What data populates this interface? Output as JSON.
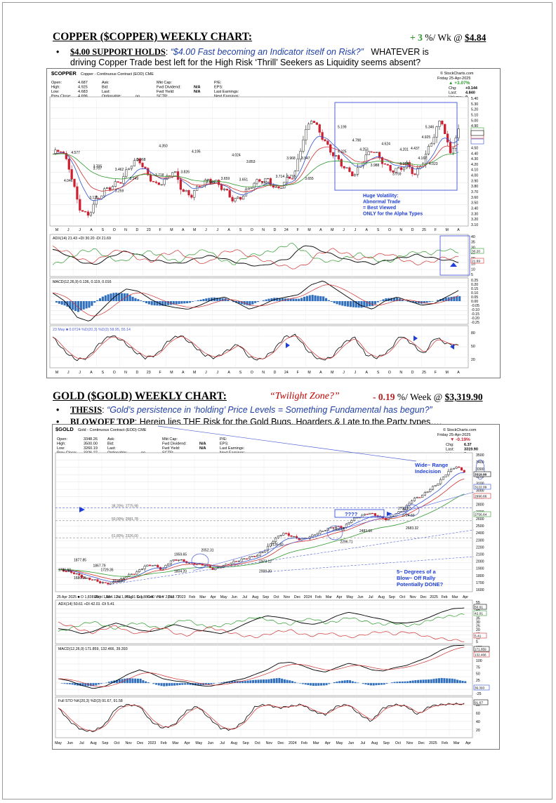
{
  "copper": {
    "title": "COPPER ($COPPER) WEEKLY CHART",
    "change_value": "+ 3",
    "change_unit": "%/ Wk @ ",
    "price": "$4.84",
    "bullet_label": "$4.00 SUPPORT HOLDS",
    "bullet_quote": "“$4.00 Fast becoming an Indicator itself on Risk?”",
    "bullet_rest": "WHATEVER is",
    "bullet_line2": "driving Copper Trade best left for the High Risk ‘Thrill’ Seekers as Liquidity seems absent?",
    "chart": {
      "symbol": "$COPPER",
      "desc": "Copper - Continuous Contract (EOD) CME",
      "source": "© StockCharts.com",
      "date": "Friday 25-Apr-2025",
      "pct": "▲ +3.07%",
      "stats_left": [
        "Open:",
        "High:",
        "Low:",
        "Prev Close:"
      ],
      "stats_left_vals": [
        "4.687",
        "4.925",
        "4.683",
        "4.696"
      ],
      "stats_mid": [
        "Ask:",
        "Bid:",
        "Last:",
        "Optionable:"
      ],
      "stats_mid_vals": [
        "",
        "",
        "",
        "no"
      ],
      "stats_r1": [
        "Mkt Cap:",
        "Fwd Dividend:",
        "Fwd Yield:",
        "SCTR:"
      ],
      "stats_r1_vals": [
        "",
        "N/A",
        "N/A",
        ""
      ],
      "stats_r2": [
        "P/E:",
        "EPS:",
        "Last Earnings:",
        "Next Earnings:"
      ],
      "stats_right": [
        "Chg:",
        "Last:",
        "Volume:"
      ],
      "stats_right_vals": [
        "+0.144",
        "4.840",
        "0"
      ],
      "legend_line": "■ Copper - Continuous Contract (EOD) (Weekly) 4.84",
      "ema_labels": [
        "EMA(9) 4.69",
        "EMA(17) 4.59",
        "EMA(40) 4.42"
      ],
      "annotation": [
        "Huge Volatility:",
        "Abnormal Trade",
        "= Best Viewed",
        "ONLY for the Alpha Types"
      ],
      "price_axis": [
        "5.40",
        "5.30",
        "5.20",
        "5.10",
        "5.00",
        "4.90",
        "4.80",
        "4.70",
        "4.60",
        "4.50",
        "4.40",
        "4.30",
        "4.20",
        "4.10",
        "4.00",
        "3.90",
        "3.80",
        "3.70",
        "3.60",
        "3.50",
        "3.40",
        "3.30",
        "3.20",
        "3.10"
      ],
      "x_labels": [
        "M",
        "J",
        "J",
        "A",
        "S",
        "O",
        "N",
        "D",
        "23",
        "F",
        "M",
        "A",
        "M",
        "J",
        "J",
        "A",
        "S",
        "O",
        "N",
        "D",
        "24",
        "F",
        "M",
        "A",
        "M",
        "J",
        "J",
        "A",
        "S",
        "O",
        "N",
        "D",
        "25",
        "F",
        "M",
        "A"
      ],
      "price_labels": [
        "4.577",
        "4.046",
        "3.707",
        "3.705",
        "3.462",
        "3.249",
        "3.259",
        "3.135",
        "3.968",
        "3.718",
        "4.350",
        "3.826",
        "4.195",
        "3.546",
        "3.659",
        "3.651",
        "4.024",
        "3.853",
        "3.526",
        "3.714",
        "3.718",
        "3.968",
        "3.947",
        "3.655",
        "5.199",
        "4.790",
        "4.325",
        "4.253",
        "3.988",
        "4.624",
        "3.964",
        "4.201",
        "3.759",
        "4.437",
        "4.925",
        "5.346",
        "4.167",
        "4.023"
      ],
      "adx_label": "ADX(14) 21.43 +DI 30.20 -DI 21.69",
      "adx_axis": [
        "40",
        "35",
        "30",
        "25",
        "20",
        "15",
        "10",
        "5"
      ],
      "adx_boxes": [
        "30.20",
        "21.69"
      ],
      "macd_label": "MACD(12,26,9) 0.136, 0.119, 0.016",
      "macd_axis": [
        "0.25",
        "0.20",
        "0.15",
        "0.10",
        "0.05",
        "0.00",
        "-0.05",
        "-0.10",
        "-0.15",
        "-0.20",
        "-0.25"
      ],
      "sto_label": "23 May ■ 0.0724 %D(20,3) %D(3) 58.95, 55.14",
      "sto_axis": [
        "80",
        "50",
        "20"
      ]
    }
  },
  "gold": {
    "title": "GOLD ($GOLD) WEEKLY CHART:",
    "twilight": "“Twilight Zone?”",
    "change_value": "- 0.19",
    "change_unit": "%/ Week @ ",
    "price": "$3,319.90",
    "b1_label": "THESIS",
    "b1_quote": "“Gold’s persistence in ‘holding’ Price Levels = Something Fundamental has begun?”",
    "b2_label": "BLOWOFF TOP",
    "b2_text": ": Herein lies THE Risk for the Gold Bugs, Hoarders & Late to the Party types….",
    "chart": {
      "symbol": "$GOLD",
      "desc": "Gold - Continuous Contract (EOD) CME",
      "source": "© StockCharts.com",
      "date": "Friday 25-Apr-2025",
      "pct": "▼ -0.19%",
      "stats_left": [
        "Open:",
        "High:",
        "Low:",
        "Prev Close:"
      ],
      "stats_left_vals": [
        "3348.26",
        "3500.00",
        "3260.19",
        "3326.27"
      ],
      "stats_mid": [
        "Ask:",
        "Bid:",
        "Last:",
        "Optionable:"
      ],
      "stats_mid_vals": [
        "",
        "",
        "",
        "no"
      ],
      "stats_r1": [
        "Mkt Cap:",
        "Fwd Dividend:",
        "Fwd Yield:",
        "SCTR:"
      ],
      "stats_r1_vals": [
        "",
        "N/A",
        "N/A",
        ""
      ],
      "stats_r2": [
        "P/E:",
        "EPS:",
        "Last Earnings:",
        "Next Earnings:"
      ],
      "stats_right": [
        "Chg:",
        "Last:",
        "Volume:"
      ],
      "stats_right_vals": [
        "6.37",
        "3319.90",
        "0"
      ],
      "legend_line": "■ Gold - Continuous Contract (EOD) (Weekly) 3319.90",
      "ema_labels": [
        "EMA(9) 3122.99",
        "EMA(17) 2990.66",
        "EMA(40) 2756.64"
      ],
      "fib_labels": [
        "38.20%: 2775.98",
        "50.00%: 2581.78",
        "61.80%: 2326.00"
      ],
      "annot_top": [
        "Wide~ Range",
        "Indecision"
      ],
      "annot_box": "????",
      "annot_bottom": [
        "5~ Degrees of a",
        "Blow~ Off Rally",
        "Potentially DONE?"
      ],
      "price_axis": [
        "3500",
        "3400",
        "3300",
        "3200",
        "3100",
        "3000",
        "2900",
        "2800",
        "2700",
        "2600",
        "2500",
        "2400",
        "2300",
        "2200",
        "2100",
        "2000",
        "1900",
        "1800",
        "1700",
        "1600"
      ],
      "price_boxes": [
        "3319.90",
        "3122.99",
        "2990.66",
        "2756.64"
      ],
      "price_labels": [
        "1877.85",
        "1786.60",
        "1680.25",
        "1867.79",
        "1729.35",
        "1613.60",
        "1959.65",
        "1804.20",
        "2052.31",
        "2009.30",
        "1973.12",
        "2135.40",
        "2450.05",
        "2296.71",
        "2483.60",
        "2790.07",
        "2724.60",
        "2683.32"
      ],
      "x_labels": [
        "May",
        "Jun",
        "Jul",
        "Aug",
        "Sep",
        "Oct",
        "Nov",
        "Dec",
        "2023",
        "Feb",
        "Mar",
        "Apr",
        "May",
        "Jun",
        "Jul",
        "Aug",
        "Sep",
        "Oct",
        "Nov",
        "Dec",
        "2024",
        "Feb",
        "Mar",
        "Apr",
        "May",
        "Jun",
        "Jul",
        "Aug",
        "Sep",
        "Oct",
        "Nov",
        "Dec",
        "2025",
        "Feb",
        "Mar",
        "Apr"
      ],
      "ohlc_strip": "25 Apr 2025 ■ O 1,838.29  H 1,854.12  L 1,871.91  C 1,886.40  V 0  Y 2,512.77",
      "adx_label": "ADX(14) 50.61 +DI 42.01 -DI 5.41",
      "adx_axis": [
        "55",
        "50",
        "45",
        "40",
        "35",
        "30",
        "25",
        "20",
        "15",
        "10",
        "5"
      ],
      "adx_boxes": [
        "50.61",
        "42.01",
        "5.41"
      ],
      "macd_label": "MACD(12,26,9) 171.859, 132.466, 39.393",
      "macd_axis": [
        "150",
        "125",
        "100",
        "75",
        "50",
        "25",
        "0",
        "-25"
      ],
      "macd_boxes": [
        "171.859",
        "132.466",
        "39.393"
      ],
      "sto_label": "Full STO %K(20,3) %D(3) 91.67, 91.58",
      "sto_axis": [
        "80",
        "60",
        "40",
        "20"
      ],
      "sto_box": "91.67"
    }
  },
  "colors": {
    "up": "#2e9a2e",
    "down": "#b22222",
    "annot": "#1f3fd8",
    "quote": "#1f3fa8",
    "twilight": "#c00000"
  }
}
